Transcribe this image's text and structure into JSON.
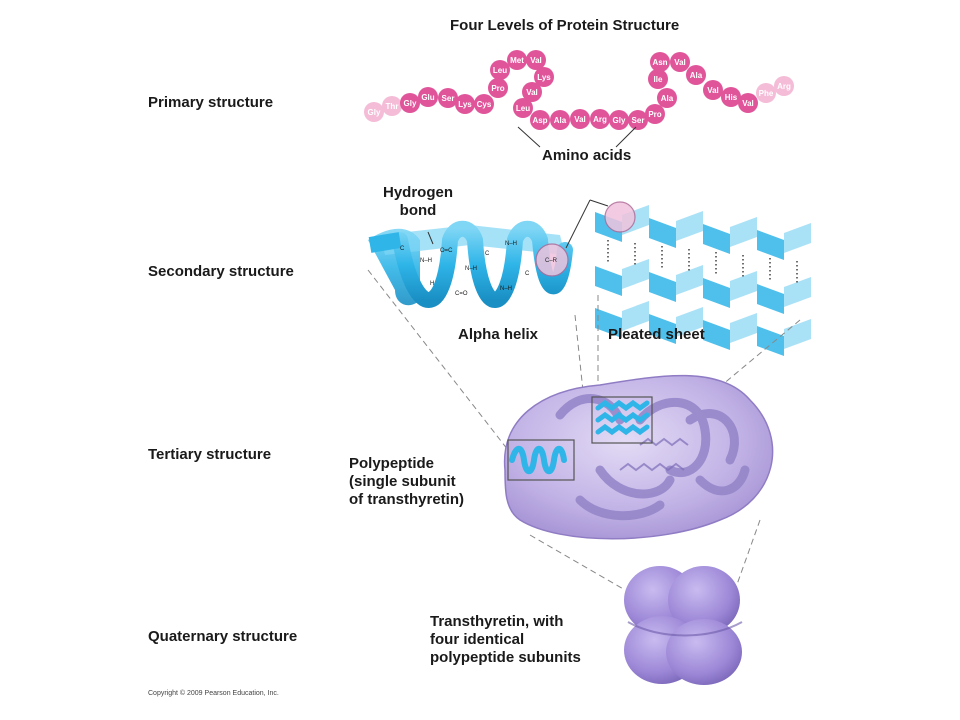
{
  "title": "Four Levels of Protein Structure",
  "levels": {
    "primary": "Primary structure",
    "secondary": "Secondary structure",
    "tertiary": "Tertiary structure",
    "quaternary": "Quaternary structure"
  },
  "labels": {
    "amino_acids": "Amino acids",
    "hydrogen_bond": "Hydrogen\nbond",
    "alpha_helix": "Alpha helix",
    "pleated_sheet": "Pleated sheet",
    "polypeptide": "Polypeptide\n(single subunit\nof transthyretin)",
    "transthyretin": "Transthyretin, with\nfour identical\npolypeptide subunits"
  },
  "amino_acid_chain": [
    "Gly",
    "Thr",
    "Gly",
    "Glu",
    "Ser",
    "Lys",
    "Cys",
    "Pro",
    "Leu",
    "Met",
    "Val",
    "Lys",
    "Val",
    "Leu",
    "Asp",
    "Ala",
    "Val",
    "Arg",
    "Gly",
    "Ser",
    "Pro",
    "Ala",
    "Ile",
    "Asn",
    "Val",
    "Ala",
    "Val",
    "His",
    "Val",
    "Phe",
    "Arg"
  ],
  "copyright": "Copyright © 2009 Pearson Education, Inc.",
  "colors": {
    "amino_acid": "#e0559a",
    "amino_acid_faded": "#f4bcd7",
    "helix_ribbon": "#2fb5e8",
    "protein_body": "#b9a6e0",
    "subunit": "#9b86d6"
  }
}
